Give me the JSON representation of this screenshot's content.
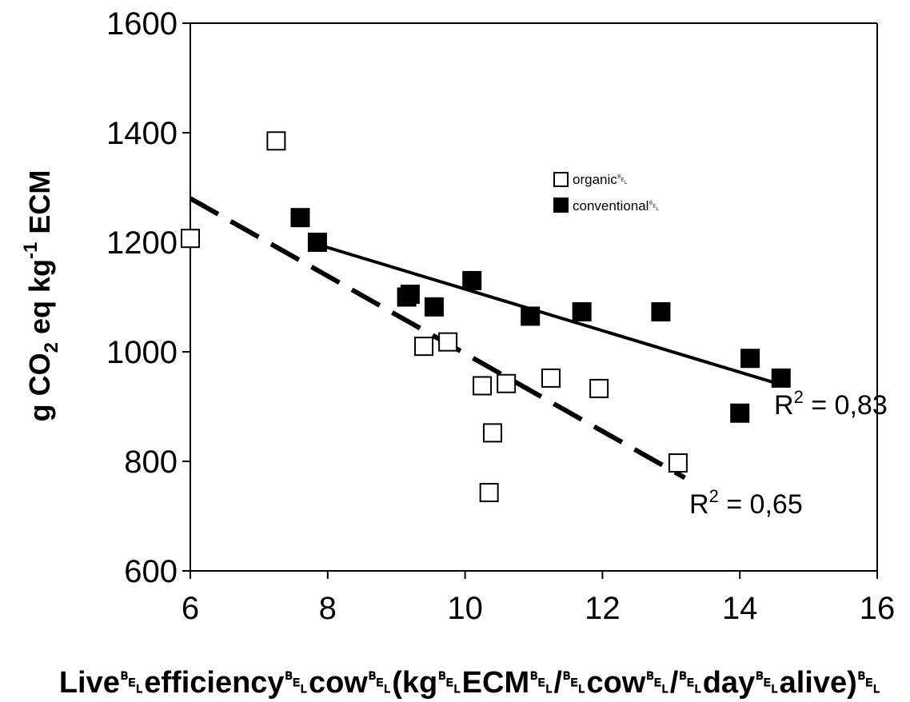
{
  "chart_data": {
    "type": "scatter",
    "xlabel": "Live␇efficiency␇cow␇(kg␇ECM␇/␇cow␇/␇day␇alive)␇",
    "ylabel": {
      "pre": "g CO",
      "sub": "2",
      "mid": " eq kg",
      "sup": "-1",
      "post": " ECM"
    },
    "xlim": [
      6,
      16
    ],
    "ylim": [
      600,
      1600
    ],
    "x_ticks": [
      "6",
      "8",
      "10",
      "12",
      "14",
      "16"
    ],
    "y_ticks": [
      "600",
      "800",
      "1000",
      "1200",
      "1400",
      "1600"
    ],
    "grid": false,
    "legend_position": "upper-right",
    "series": [
      {
        "name": "organic␇",
        "marker": "open-square",
        "color": "#000000",
        "points": [
          [
            6.0,
            1207
          ],
          [
            7.25,
            1385
          ],
          [
            9.4,
            1010
          ],
          [
            9.75,
            1018
          ],
          [
            10.25,
            938
          ],
          [
            10.6,
            942
          ],
          [
            11.25,
            952
          ],
          [
            11.95,
            933
          ],
          [
            10.4,
            852
          ],
          [
            10.35,
            743
          ],
          [
            13.1,
            797
          ]
        ],
        "trend": {
          "line_style": "dashed",
          "from": [
            6.0,
            1280
          ],
          "to": [
            13.2,
            770
          ]
        },
        "r2_label": {
          "base": "R",
          "sup": "2",
          "rest": " = 0,65"
        }
      },
      {
        "name": "conventional␇",
        "marker": "filled-square",
        "color": "#000000",
        "points": [
          [
            7.6,
            1245
          ],
          [
            7.85,
            1200
          ],
          [
            9.15,
            1100
          ],
          [
            9.2,
            1105
          ],
          [
            9.55,
            1082
          ],
          [
            10.1,
            1130
          ],
          [
            10.95,
            1065
          ],
          [
            11.7,
            1073
          ],
          [
            12.85,
            1073
          ],
          [
            14.15,
            988
          ],
          [
            14.6,
            952
          ],
          [
            14.0,
            888
          ]
        ],
        "trend": {
          "line_style": "solid",
          "from": [
            7.8,
            1198
          ],
          "to": [
            14.6,
            940
          ]
        },
        "r2_label": {
          "base": "R",
          "sup": "2",
          "rest": " = 0,83"
        }
      }
    ]
  }
}
